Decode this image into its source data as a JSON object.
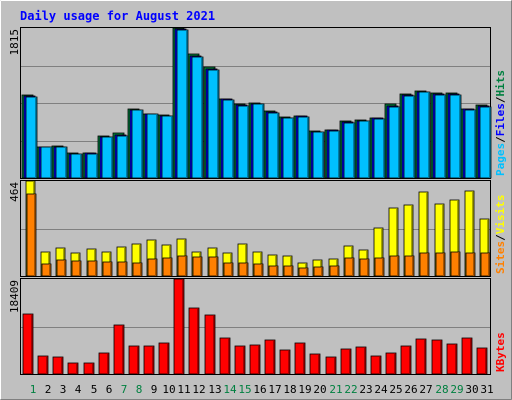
{
  "chart_data": [
    {
      "type": "bar",
      "title": "Daily usage for August 2021",
      "categories": [
        "1",
        "2",
        "3",
        "4",
        "5",
        "6",
        "7",
        "8",
        "9",
        "10",
        "11",
        "12",
        "13",
        "14",
        "15",
        "16",
        "17",
        "18",
        "19",
        "20",
        "21",
        "22",
        "23",
        "24",
        "25",
        "26",
        "27",
        "28",
        "29",
        "30",
        "31"
      ],
      "weekend_categories": [
        "1",
        "7",
        "8",
        "14",
        "15",
        "21",
        "22",
        "28",
        "29"
      ],
      "ylim": [
        0,
        1815
      ],
      "y_tick_label": "1815",
      "series": [
        {
          "name": "Hits",
          "color": "#008040",
          "values": [
            1000,
            380,
            385,
            300,
            305,
            505,
            540,
            830,
            780,
            765,
            1810,
            1500,
            1340,
            960,
            890,
            905,
            810,
            735,
            755,
            565,
            580,
            685,
            705,
            730,
            890,
            1020,
            1050,
            1025,
            1025,
            840,
            880
          ]
        },
        {
          "name": "Files",
          "color": "#0000ff",
          "values": [
            990,
            375,
            380,
            295,
            300,
            500,
            525,
            825,
            775,
            755,
            1800,
            1480,
            1320,
            950,
            880,
            895,
            800,
            730,
            750,
            560,
            575,
            675,
            695,
            720,
            875,
            1005,
            1040,
            1015,
            1015,
            830,
            870
          ]
        },
        {
          "name": "Pages",
          "color": "#00c0ff",
          "values": [
            985,
            370,
            375,
            290,
            295,
            495,
            510,
            820,
            770,
            745,
            1790,
            1470,
            1310,
            940,
            875,
            890,
            790,
            725,
            740,
            555,
            570,
            665,
            690,
            715,
            865,
            995,
            1035,
            1010,
            1005,
            820,
            865
          ]
        }
      ],
      "side_label_parts": [
        "Pages",
        "/",
        "Files",
        "/",
        "Hits"
      ],
      "side_label_colors": [
        "#00c0ff",
        "#000000",
        "#0000ff",
        "#000000",
        "#008040"
      ]
    },
    {
      "type": "bar",
      "categories": [
        "1",
        "2",
        "3",
        "4",
        "5",
        "6",
        "7",
        "8",
        "9",
        "10",
        "11",
        "12",
        "13",
        "14",
        "15",
        "16",
        "17",
        "18",
        "19",
        "20",
        "21",
        "22",
        "23",
        "24",
        "25",
        "26",
        "27",
        "28",
        "29",
        "30",
        "31"
      ],
      "ylim": [
        0,
        464
      ],
      "y_tick_label": "464",
      "series": [
        {
          "name": "Visits",
          "color": "#ffff00",
          "values": [
            464,
            118,
            138,
            110,
            132,
            116,
            140,
            155,
            176,
            150,
            183,
            118,
            136,
            113,
            158,
            118,
            101,
            100,
            65,
            76,
            84,
            146,
            127,
            235,
            330,
            346,
            411,
            353,
            373,
            414,
            280
          ]
        },
        {
          "name": "Sites",
          "color": "#ff8000",
          "values": [
            400,
            58,
            78,
            72,
            72,
            68,
            68,
            65,
            85,
            88,
            100,
            92,
            95,
            62,
            62,
            58,
            50,
            50,
            38,
            42,
            50,
            88,
            84,
            90,
            98,
            100,
            110,
            110,
            115,
            110,
            110
          ]
        }
      ],
      "side_label_parts": [
        "Sites",
        "/",
        "Visits"
      ],
      "side_label_colors": [
        "#ff8000",
        "#000000",
        "#ffff00"
      ]
    },
    {
      "type": "bar",
      "categories": [
        "1",
        "2",
        "3",
        "4",
        "5",
        "6",
        "7",
        "8",
        "9",
        "10",
        "11",
        "12",
        "13",
        "14",
        "15",
        "16",
        "17",
        "18",
        "19",
        "20",
        "21",
        "22",
        "23",
        "24",
        "25",
        "26",
        "27",
        "28",
        "29",
        "30",
        "31"
      ],
      "ylim": [
        0,
        18409
      ],
      "y_tick_label": "18409",
      "series": [
        {
          "name": "KBytes",
          "color": "#ff0000",
          "values": [
            11600,
            3400,
            3200,
            2200,
            2200,
            4000,
            9400,
            5400,
            5400,
            6000,
            18400,
            12700,
            11400,
            7000,
            5400,
            5700,
            6500,
            4700,
            6100,
            3900,
            3300,
            4800,
            5200,
            3500,
            4100,
            5500,
            6800,
            6500,
            5800,
            7000,
            5100
          ]
        }
      ],
      "side_label_parts": [
        "KBytes"
      ],
      "side_label_colors": [
        "#ff0000"
      ]
    }
  ]
}
